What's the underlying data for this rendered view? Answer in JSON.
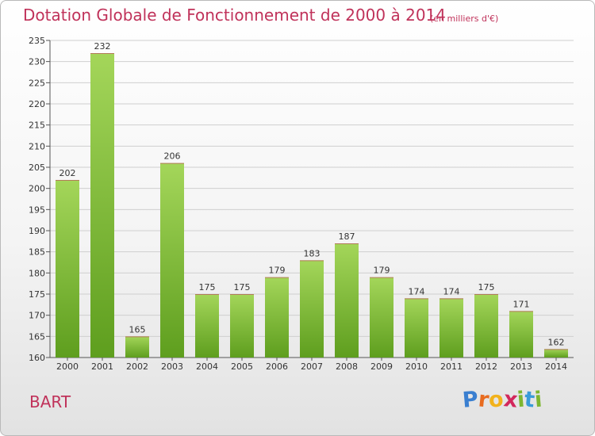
{
  "header": {
    "title": "Dotation Globale de Fonctionnement de 2000 à 2014",
    "unit_note": "(en milliers d'€)"
  },
  "footer": {
    "commune": "BART",
    "logo": {
      "letters": [
        "P",
        "r",
        "o",
        "x",
        "i",
        "t",
        "i"
      ],
      "colors": [
        "#3a7fd0",
        "#e86b1f",
        "#f2b21c",
        "#d2285c",
        "#7db630",
        "#3a9bd8",
        "#7db630"
      ]
    }
  },
  "colors": {
    "bar_light": "#a4d65a",
    "bar_dark": "#5e9e1e",
    "title": "#c0325a",
    "grid": "#cfcfcf"
  },
  "chart_data": {
    "type": "bar",
    "title": "Dotation Globale de Fonctionnement de 2000 à 2014",
    "subtitle": "(en milliers d'€)",
    "categories": [
      "2000",
      "2001",
      "2002",
      "2003",
      "2004",
      "2005",
      "2006",
      "2007",
      "2008",
      "2009",
      "2010",
      "2011",
      "2012",
      "2013",
      "2014"
    ],
    "values": [
      202,
      232,
      165,
      206,
      175,
      175,
      179,
      183,
      187,
      179,
      174,
      174,
      175,
      171,
      162
    ],
    "ylim": [
      160,
      235
    ],
    "yticks": [
      160,
      165,
      170,
      175,
      180,
      185,
      190,
      195,
      200,
      205,
      210,
      215,
      220,
      225,
      230,
      235
    ],
    "grid": true,
    "xlabel": "",
    "ylabel": ""
  }
}
